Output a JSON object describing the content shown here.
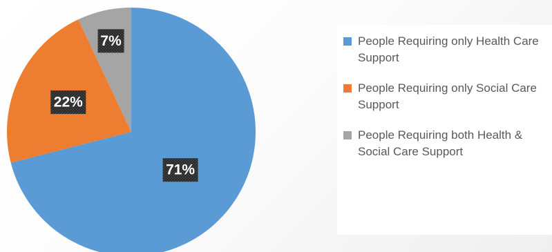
{
  "chart_data": {
    "type": "pie",
    "title": "",
    "legend_position": "right",
    "start_angle_deg": 0,
    "direction": "clockwise",
    "slices": [
      {
        "label": "People Requiring only Health Care Support",
        "value": 71,
        "display": "71%",
        "color": "#5b9bd5"
      },
      {
        "label": "People Requiring only Social Care Support",
        "value": 22,
        "display": "22%",
        "color": "#ed7d31"
      },
      {
        "label": "People Requiring both Health & Social Care Support",
        "value": 7,
        "display": "7%",
        "color": "#a5a5a5"
      }
    ]
  }
}
